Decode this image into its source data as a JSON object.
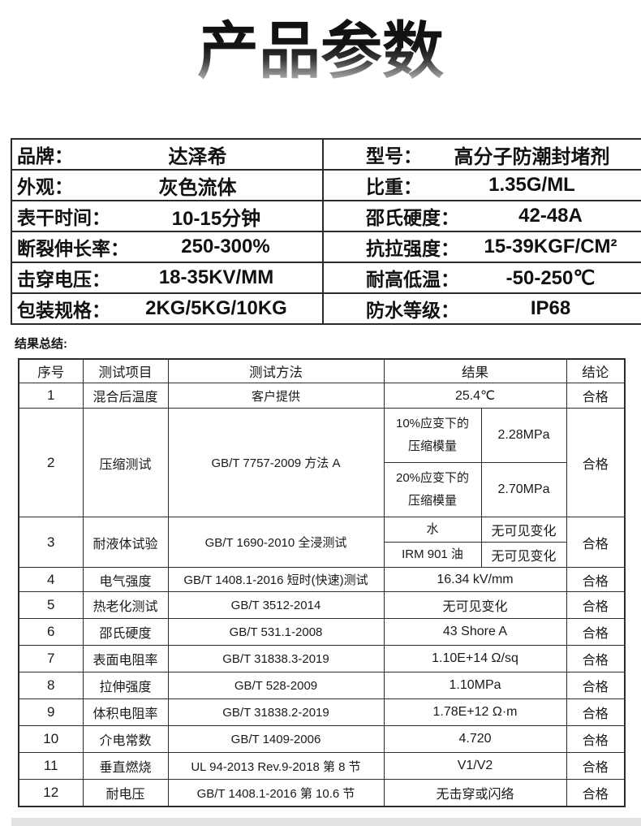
{
  "title": "产品参数",
  "specs": {
    "rows": [
      {
        "l_label": "品牌：",
        "l_value": "达泽希",
        "r_label": "型号：",
        "r_value": "高分子防潮封堵剂"
      },
      {
        "l_label": "外观：",
        "l_value": "灰色流体",
        "r_label": "比重：",
        "r_value": "1.35G/ML"
      },
      {
        "l_label": "表干时间：",
        "l_value": "10-15分钟",
        "r_label": "邵氏硬度：",
        "r_value": "42-48A"
      },
      {
        "l_label": "断裂伸长率：",
        "l_value": "250-300%",
        "r_label": "抗拉强度：",
        "r_value": "15-39KGF/CM²"
      },
      {
        "l_label": "击穿电压：",
        "l_value": "18-35KV/MM",
        "r_label": "耐高低温：",
        "r_value": "-50-250℃"
      },
      {
        "l_label": "包装规格：",
        "l_value": "2KG/5KG/10KG",
        "r_label": "防水等级：",
        "r_value": "IP68"
      }
    ]
  },
  "results": {
    "section_label": "结果总结:",
    "headers": [
      "序号",
      "测试项目",
      "测试方法",
      "结果",
      "结论"
    ],
    "rows": [
      {
        "no": "1",
        "item": "混合后温度",
        "method": "客户提供",
        "result": "25.4℃",
        "verdict": "合格"
      },
      {
        "no": "2",
        "item": "压缩测试",
        "method": "GB/T 7757-2009 方法 A",
        "sub": [
          {
            "label": "10%应变下的\n压缩模量",
            "value": "2.28MPa"
          },
          {
            "label": "20%应变下的\n压缩模量",
            "value": "2.70MPa"
          }
        ],
        "verdict": "合格"
      },
      {
        "no": "3",
        "item": "耐液体试验",
        "method": "GB/T 1690-2010 全浸测试",
        "sub": [
          {
            "label": "水",
            "value": "无可见变化"
          },
          {
            "label": "IRM 901 油",
            "value": "无可见变化"
          }
        ],
        "verdict": "合格"
      },
      {
        "no": "4",
        "item": "电气强度",
        "method": "GB/T 1408.1-2016 短时(快速)测试",
        "result": "16.34 kV/mm",
        "verdict": "合格"
      },
      {
        "no": "5",
        "item": "热老化测试",
        "method": "GB/T 3512-2014",
        "result": "无可见变化",
        "verdict": "合格"
      },
      {
        "no": "6",
        "item": "邵氏硬度",
        "method": "GB/T 531.1-2008",
        "result": "43 Shore A",
        "verdict": "合格"
      },
      {
        "no": "7",
        "item": "表面电阻率",
        "method": "GB/T 31838.3-2019",
        "result": "1.10E+14 Ω/sq",
        "verdict": "合格"
      },
      {
        "no": "8",
        "item": "拉伸强度",
        "method": "GB/T 528-2009",
        "result": "1.10MPa",
        "verdict": "合格"
      },
      {
        "no": "9",
        "item": "体积电阻率",
        "method": "GB/T 31838.2-2019",
        "result": "1.78E+12 Ω·m",
        "verdict": "合格"
      },
      {
        "no": "10",
        "item": "介电常数",
        "method": "GB/T 1409-2006",
        "result": "4.720",
        "verdict": "合格"
      },
      {
        "no": "11",
        "item": "垂直燃烧",
        "method": "UL 94-2013 Rev.9-2018 第 8 节",
        "result": "V1/V2",
        "verdict": "合格"
      },
      {
        "no": "12",
        "item": "耐电压",
        "method": "GB/T 1408.1-2016 第 10.6 节",
        "result": "无击穿或闪络",
        "verdict": "合格"
      }
    ]
  },
  "colors": {
    "table_border": "#2b2b2b",
    "footer_strip": "#e3e3e3",
    "title_gradient_top": "#101010",
    "title_gradient_bottom": "#c9c9c9"
  }
}
